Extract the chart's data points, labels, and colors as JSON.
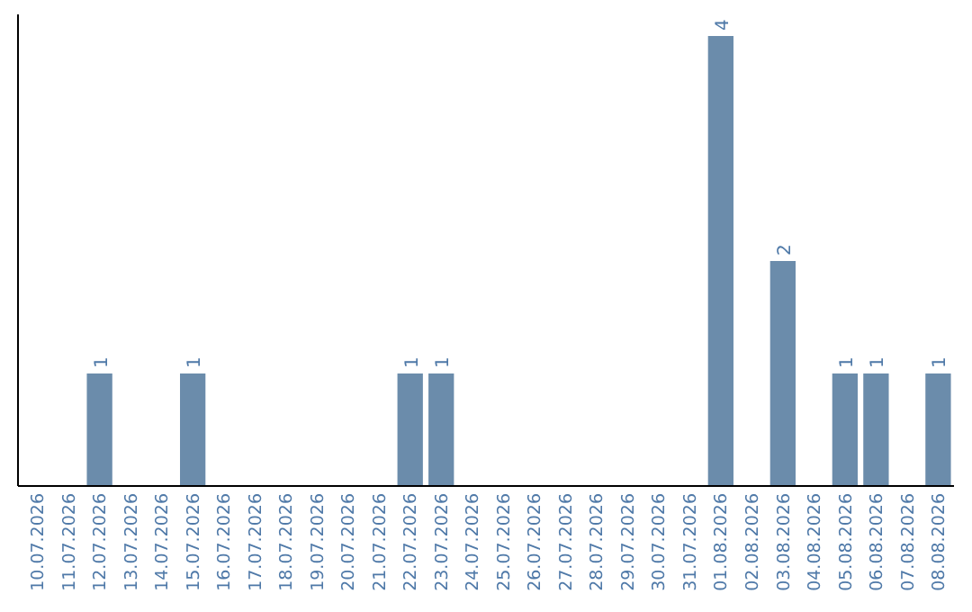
{
  "chart_data": {
    "type": "bar",
    "categories": [
      "10.07.2026",
      "11.07.2026",
      "12.07.2026",
      "13.07.2026",
      "14.07.2026",
      "15.07.2026",
      "16.07.2026",
      "17.07.2026",
      "18.07.2026",
      "19.07.2026",
      "20.07.2026",
      "21.07.2026",
      "22.07.2026",
      "23.07.2026",
      "24.07.2026",
      "25.07.2026",
      "26.07.2026",
      "27.07.2026",
      "28.07.2026",
      "29.07.2026",
      "30.07.2026",
      "31.07.2026",
      "01.08.2026",
      "02.08.2026",
      "03.08.2026",
      "04.08.2026",
      "05.08.2026",
      "06.08.2026",
      "07.08.2026",
      "08.08.2026"
    ],
    "values": [
      0,
      0,
      1,
      0,
      0,
      1,
      0,
      0,
      0,
      0,
      0,
      0,
      1,
      1,
      0,
      0,
      0,
      0,
      0,
      0,
      0,
      0,
      4,
      0,
      2,
      0,
      1,
      1,
      0,
      1
    ],
    "value_labels": [
      null,
      null,
      "1",
      null,
      null,
      "1",
      null,
      null,
      null,
      null,
      null,
      null,
      "1",
      "1",
      null,
      null,
      null,
      null,
      null,
      null,
      null,
      null,
      "4",
      null,
      "2",
      null,
      "1",
      "1",
      null,
      "1"
    ],
    "color": "#6b8cab"
  }
}
